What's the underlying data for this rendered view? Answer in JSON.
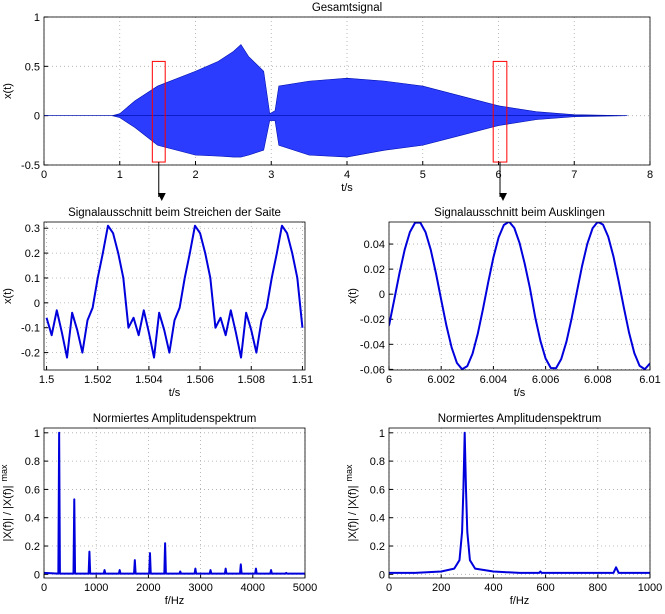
{
  "chart_data": [
    {
      "type": "area",
      "title": "Gesamtsignal",
      "xlabel": "t/s",
      "ylabel": "x(t)",
      "grid": true,
      "xlim": [
        0,
        8
      ],
      "ylim": [
        -0.5,
        1
      ],
      "xticks": [
        0,
        1,
        2,
        3,
        4,
        5,
        6,
        7,
        8
      ],
      "yticks": [
        -0.5,
        0,
        0.5,
        1
      ],
      "x": [
        0,
        0.9,
        1.0,
        1.2,
        1.5,
        2.0,
        2.3,
        2.5,
        2.6,
        2.7,
        2.9,
        2.98,
        3.05,
        3.1,
        3.5,
        4.0,
        4.5,
        5.0,
        5.5,
        6.0,
        6.5,
        7.0,
        7.7
      ],
      "series": [
        {
          "color": "#2b3cff",
          "values": [
            0,
            0,
            0.02,
            0.15,
            0.3,
            0.45,
            0.55,
            0.65,
            0.72,
            0.6,
            0.45,
            0.02,
            0.05,
            0.3,
            0.35,
            0.38,
            0.35,
            0.3,
            0.2,
            0.1,
            0.04,
            0.01,
            0
          ]
        },
        {
          "color": "#2b3cff",
          "values": [
            0,
            0,
            -0.02,
            -0.12,
            -0.3,
            -0.4,
            -0.41,
            -0.42,
            -0.42,
            -0.4,
            -0.35,
            -0.05,
            -0.05,
            -0.3,
            -0.4,
            -0.42,
            -0.35,
            -0.3,
            -0.2,
            -0.1,
            -0.04,
            -0.01,
            0
          ]
        }
      ],
      "highlights": [
        {
          "t0": 1.43,
          "t1": 1.6,
          "y0": -0.47,
          "y1": 0.55,
          "color": "#ff0000"
        },
        {
          "t0": 5.93,
          "t1": 6.11,
          "y0": -0.47,
          "y1": 0.55,
          "color": "#ff0000"
        }
      ]
    },
    {
      "type": "line",
      "title": "Signalausschnitt beim Streichen der Saite",
      "xlabel": "t/s",
      "ylabel": "x(t)",
      "grid": true,
      "color": "#0000dd",
      "xlim": [
        1.4999,
        1.5101
      ],
      "ylim": [
        -0.27,
        0.325
      ],
      "xticks": [
        1.5,
        1.502,
        1.504,
        1.506,
        1.508,
        1.51
      ],
      "yticks": [
        -0.2,
        -0.1,
        0,
        0.1,
        0.2,
        0.3
      ],
      "x": [
        1.5,
        1.5002,
        1.5004,
        1.5006,
        1.5008,
        1.501,
        1.5012,
        1.5014,
        1.5016,
        1.5018,
        1.502,
        1.5022,
        1.5024,
        1.5026,
        1.5028,
        1.503,
        1.5032,
        1.5034,
        1.5036,
        1.5038,
        1.504,
        1.5042,
        1.5044,
        1.5046,
        1.5048,
        1.505,
        1.5052,
        1.5054,
        1.5056,
        1.5058,
        1.506,
        1.5062,
        1.5064,
        1.5066,
        1.5068,
        1.507,
        1.5072,
        1.5074,
        1.5076,
        1.5078,
        1.508,
        1.5082,
        1.5084,
        1.5086,
        1.5088,
        1.509,
        1.5092,
        1.5094,
        1.5096,
        1.5098,
        1.51
      ],
      "values": [
        -0.06,
        -0.13,
        -0.03,
        -0.12,
        -0.22,
        -0.04,
        -0.11,
        -0.2,
        -0.07,
        -0.02,
        0.1,
        0.2,
        0.31,
        0.28,
        0.2,
        0.1,
        -0.1,
        -0.06,
        -0.13,
        -0.03,
        -0.12,
        -0.22,
        -0.04,
        -0.11,
        -0.2,
        -0.07,
        -0.02,
        0.1,
        0.2,
        0.31,
        0.28,
        0.2,
        0.1,
        -0.1,
        -0.06,
        -0.13,
        -0.03,
        -0.12,
        -0.22,
        -0.04,
        -0.11,
        -0.2,
        -0.07,
        -0.02,
        0.1,
        0.2,
        0.31,
        0.28,
        0.2,
        0.1,
        -0.1
      ]
    },
    {
      "type": "line",
      "title": "Signalausschnitt beim Ausklingen",
      "xlabel": "t/s",
      "ylabel": "x(t)",
      "grid": true,
      "color": "#0000dd",
      "xlim": [
        6,
        6.01
      ],
      "ylim": [
        -0.0605,
        0.0576
      ],
      "xticks": [
        6,
        6.002,
        6.004,
        6.006,
        6.008,
        6.01
      ],
      "yticks": [
        -0.06,
        -0.04,
        -0.02,
        0,
        0.02,
        0.04
      ],
      "x": [
        6,
        6.0002,
        6.0004,
        6.0006,
        6.0008,
        6.001,
        6.0012,
        6.0014,
        6.0016,
        6.0018,
        6.002,
        6.0022,
        6.0024,
        6.0026,
        6.0028,
        6.003,
        6.0032,
        6.0034,
        6.0036,
        6.0038,
        6.004,
        6.0042,
        6.0044,
        6.0046,
        6.0048,
        6.005,
        6.0052,
        6.0054,
        6.0056,
        6.0058,
        6.006,
        6.0062,
        6.0064,
        6.0066,
        6.0068,
        6.007,
        6.0072,
        6.0074,
        6.0076,
        6.0078,
        6.008,
        6.0082,
        6.0084,
        6.0086,
        6.0088,
        6.009,
        6.0092,
        6.0094,
        6.0096,
        6.0098,
        6.01
      ],
      "values": [
        -0.0251,
        -0.0045,
        0.0166,
        0.0354,
        0.0495,
        0.0571,
        0.0571,
        0.0495,
        0.0354,
        0.0166,
        -0.0045,
        -0.0251,
        -0.0426,
        -0.0548,
        -0.0599,
        -0.0574,
        -0.0475,
        -0.0317,
        -0.0119,
        0.0094,
        0.0293,
        0.0453,
        0.0552,
        0.0579,
        0.0529,
        0.041,
        0.0243,
        0.0048,
        -0.0182,
        -0.0371,
        -0.0513,
        -0.0589,
        -0.0591,
        -0.0517,
        -0.0378,
        -0.0191,
        0.002,
        0.0227,
        0.0403,
        0.0526,
        0.0578,
        0.0555,
        0.0458,
        0.0301,
        0.0103,
        -0.0109,
        -0.0309,
        -0.047,
        -0.0571,
        -0.0599,
        -0.0552
      ]
    },
    {
      "type": "line",
      "title": "Normiertes Amplitudenspektrum",
      "xlabel": "f/Hz",
      "ylabel": "|X(f)| / |X(f)|",
      "ylabel_sub": "max",
      "grid": true,
      "color": "#0000dd",
      "xlim": [
        0,
        5000
      ],
      "ylim": [
        -0.026,
        1.034
      ],
      "xticks": [
        0,
        1000,
        2000,
        3000,
        4000,
        5000
      ],
      "yticks": [
        0,
        0.2,
        0.4,
        0.6,
        0.8,
        1
      ],
      "x": [
        0,
        275,
        290,
        305,
        565,
        580,
        595,
        855,
        870,
        885,
        1145,
        1160,
        1175,
        1435,
        1450,
        1465,
        1725,
        1740,
        1755,
        2015,
        2030,
        2045,
        2305,
        2320,
        2335,
        2595,
        2610,
        2625,
        2885,
        2900,
        2915,
        3175,
        3190,
        3205,
        3465,
        3480,
        3495,
        3755,
        3770,
        3785,
        4045,
        4060,
        4075,
        4335,
        4350,
        4365,
        4625,
        4640,
        4655,
        5000
      ],
      "values": [
        0.01,
        0.005,
        1.0,
        0.005,
        0.005,
        0.53,
        0.005,
        0.005,
        0.16,
        0.005,
        0.005,
        0.03,
        0.005,
        0.005,
        0.03,
        0.005,
        0.005,
        0.1,
        0.005,
        0.005,
        0.15,
        0.005,
        0.005,
        0.22,
        0.005,
        0.005,
        0.02,
        0.005,
        0.005,
        0.04,
        0.005,
        0.005,
        0.03,
        0.005,
        0.005,
        0.04,
        0.005,
        0.005,
        0.07,
        0.005,
        0.005,
        0.04,
        0.005,
        0.005,
        0.03,
        0.005,
        0.005,
        0.01,
        0.005,
        0.005
      ]
    },
    {
      "type": "line",
      "title": "Normiertes Amplitudenspektrum",
      "xlabel": "f/Hz",
      "ylabel": "|X(f)| / |X(f)|",
      "ylabel_sub": "max",
      "grid": true,
      "color": "#0000dd",
      "xlim": [
        0,
        1000
      ],
      "ylim": [
        -0.026,
        1.034
      ],
      "xticks": [
        0,
        200,
        400,
        600,
        800,
        1000
      ],
      "yticks": [
        0,
        0.2,
        0.4,
        0.6,
        0.8,
        1
      ],
      "x": [
        0,
        100,
        200,
        250,
        270,
        280,
        285,
        290,
        295,
        300,
        310,
        330,
        400,
        500,
        575,
        580,
        585,
        860,
        870,
        880,
        1000
      ],
      "values": [
        0.01,
        0.01,
        0.02,
        0.04,
        0.1,
        0.3,
        0.6,
        1.0,
        0.6,
        0.3,
        0.1,
        0.04,
        0.02,
        0.01,
        0.01,
        0.02,
        0.01,
        0.01,
        0.05,
        0.01,
        0.01
      ]
    }
  ]
}
